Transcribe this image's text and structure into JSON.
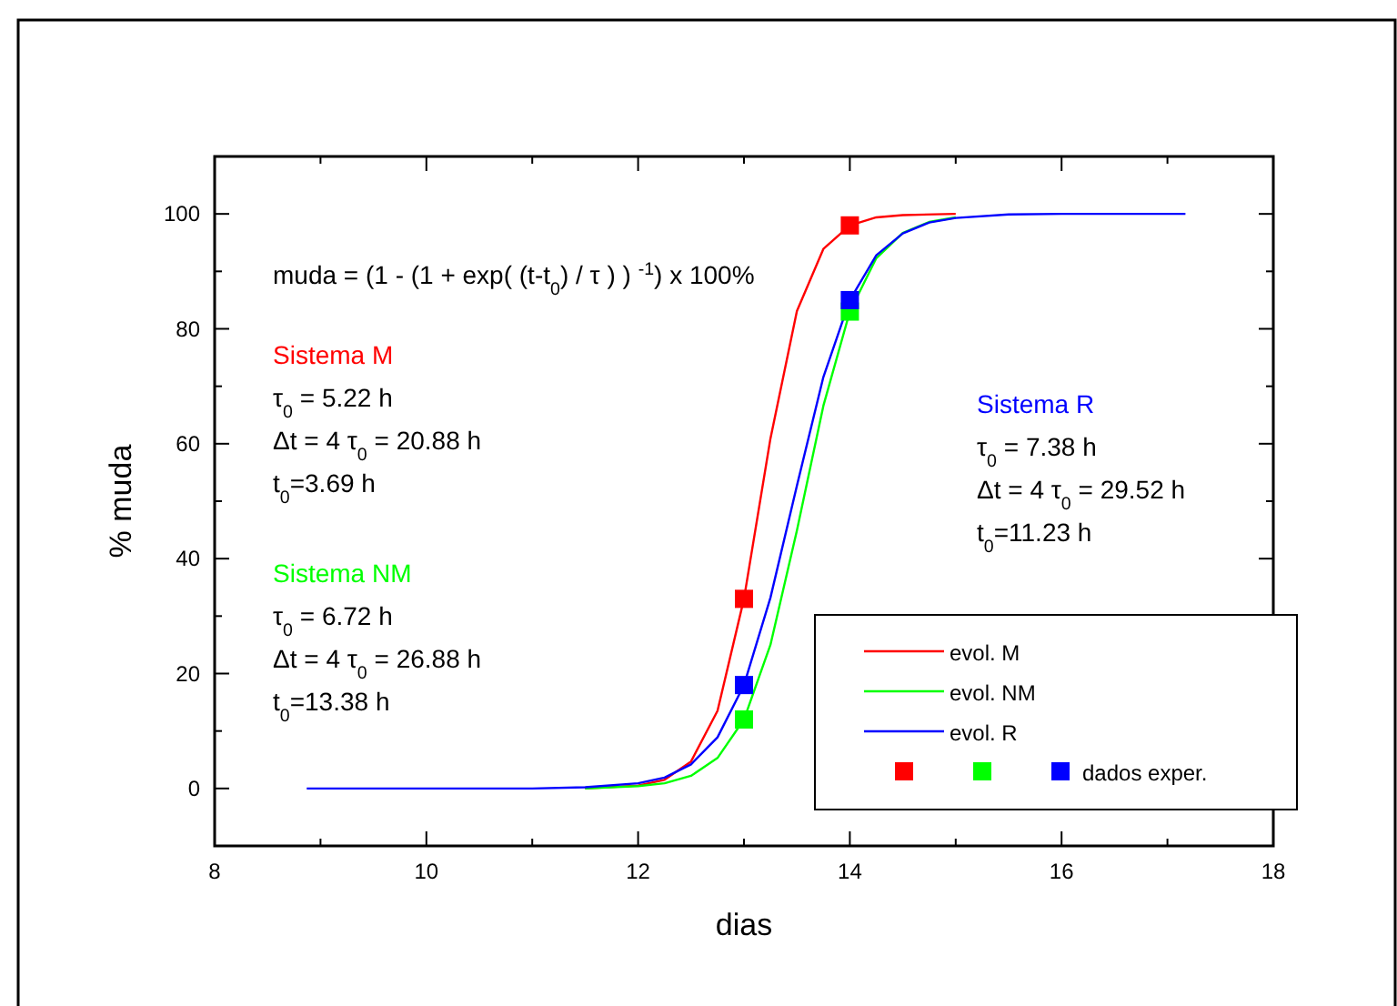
{
  "chart_data": {
    "type": "line",
    "xlabel": "dias",
    "ylabel": "% muda",
    "xlim": [
      8,
      18
    ],
    "ylim": [
      -10,
      110
    ],
    "xticks": [
      8,
      {
        "value": 9,
        "label": null
      },
      10,
      {
        "value": 11,
        "label": null
      },
      12,
      {
        "value": 13,
        "label": null
      },
      14,
      {
        "value": 15,
        "label": null
      },
      16,
      {
        "value": 17,
        "label": null
      },
      18
    ],
    "yticks": [
      {
        "value": -10,
        "label": null
      },
      0,
      {
        "value": 10,
        "label": null
      },
      20,
      {
        "value": 30,
        "label": null
      },
      40,
      {
        "value": 50,
        "label": null
      },
      60,
      {
        "value": 70,
        "label": null
      },
      80,
      {
        "value": 90,
        "label": null
      },
      100,
      {
        "value": 110,
        "label": null
      }
    ],
    "grid": false,
    "legend": "bottom right",
    "marker": "none",
    "series": [
      {
        "name": "evol. M",
        "color": "#ff0000",
        "x": [
          11.5,
          12,
          12.25,
          12.5,
          12.75,
          13,
          13.25,
          13.5,
          13.75,
          14,
          14.25,
          14.5,
          15
        ],
        "values": [
          0,
          0.5,
          1.5,
          4.7,
          13.5,
          33,
          60.9,
          83.1,
          93.9,
          98,
          99.4,
          99.8,
          100
        ]
      },
      {
        "name": "evol. NM",
        "color": "#00ff00",
        "x": [
          11.5,
          12,
          12.25,
          12.5,
          12.75,
          13,
          13.25,
          13.5,
          13.75,
          14,
          14.25,
          14.5,
          14.75,
          15
        ],
        "values": [
          0,
          0.4,
          0.9,
          2.2,
          5.3,
          12,
          25,
          44.9,
          66.6,
          83,
          92.3,
          96.7,
          98.6,
          99.4
        ]
      },
      {
        "name": "evol. R",
        "color": "#0000ff",
        "x": [
          8.87,
          10,
          11,
          11.5,
          12,
          12.25,
          12.5,
          12.75,
          13,
          13.25,
          13.5,
          13.75,
          14,
          14.25,
          14.5,
          14.75,
          15,
          15.5,
          16,
          17.17
        ],
        "values": [
          0,
          0,
          0,
          0.2,
          0.9,
          1.9,
          4.2,
          8.9,
          18,
          33.2,
          52.7,
          71.6,
          85,
          92.8,
          96.6,
          98.5,
          99.3,
          99.9,
          100,
          100
        ]
      },
      {
        "name": "dados exper.",
        "type": "scatter",
        "marker": "square",
        "x": [
          13,
          14,
          13,
          14,
          13,
          14
        ],
        "values": [
          33,
          98,
          12,
          83,
          18,
          85
        ],
        "colors": [
          "#ff0000",
          "#ff0000",
          "#00ff00",
          "#00ff00",
          "#0000ff",
          "#0000ff"
        ]
      }
    ],
    "annotations": [
      "muda = (1 - (1 + exp( (t-t$_{0}$) / τ ) ) $^{-1}$) x 100%",
      "Sistema M",
      "τ$_{0}$ = 5.22 h",
      "Δt = 4 τ$_{0}$ = 20.88 h",
      "t$_{0}$=3.69 h",
      "Sistema NM",
      "τ$_{0}$ = 6.72 h",
      "Δt = 4 τ$_{0}$ = 26.88 h",
      "t$_{0}$=13.38 h",
      "Sistema R",
      "τ$_{0}$ = 7.38 h",
      "Δt = 4 τ$_{0}$ = 29.52 h",
      "t$_{0}$=11.23 h"
    ]
  }
}
